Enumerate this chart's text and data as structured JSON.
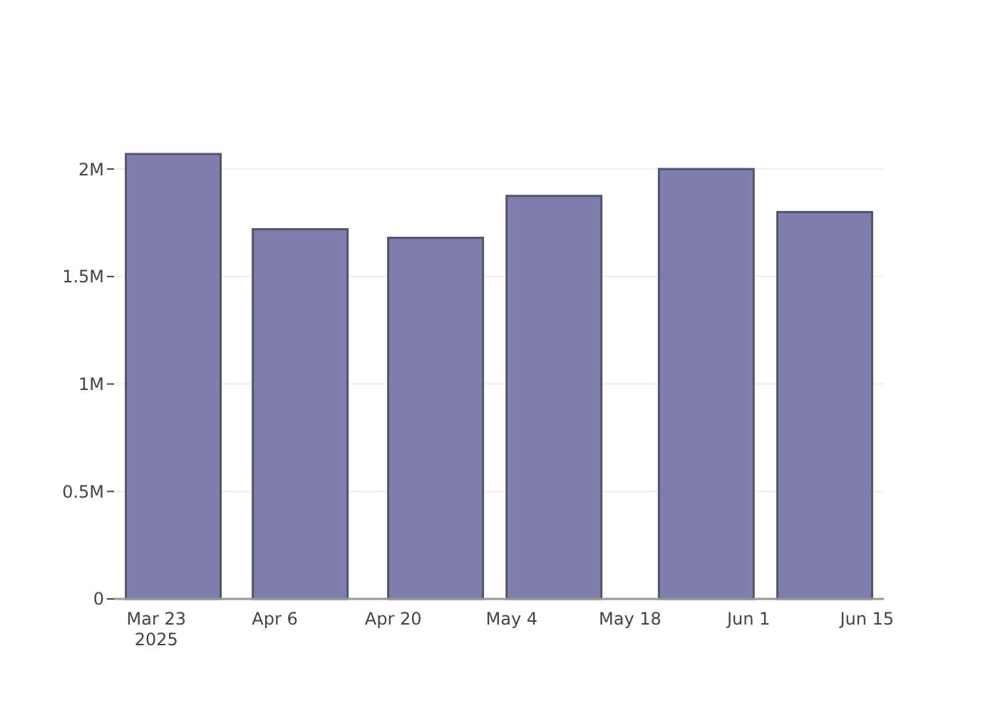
{
  "chart_data": {
    "type": "bar",
    "x": [
      "2025-03-25",
      "2025-04-09",
      "2025-04-25",
      "2025-05-09",
      "2025-05-27",
      "2025-06-10"
    ],
    "values": [
      2070000,
      1720000,
      1680000,
      1875000,
      2000000,
      1800000
    ],
    "color": "#7f7fae",
    "xlim": [
      "2025-03-18",
      "2025-06-17"
    ],
    "xticks": [
      {
        "value": "2025-03-23",
        "label": "Mar 23\n2025"
      },
      {
        "value": "2025-04-06",
        "label": "Apr 6"
      },
      {
        "value": "2025-04-20",
        "label": "Apr 20"
      },
      {
        "value": "2025-05-04",
        "label": "May 4"
      },
      {
        "value": "2025-05-18",
        "label": "May 18"
      },
      {
        "value": "2025-06-01",
        "label": "Jun 1"
      },
      {
        "value": "2025-06-15",
        "label": "Jun 15"
      }
    ],
    "ylim": [
      0,
      2070000
    ],
    "yticks": [
      0,
      {
        "value": 500000,
        "label": "0.5M"
      },
      {
        "value": 1000000,
        "label": "1M"
      },
      {
        "value": 1500000,
        "label": "1.5M"
      },
      {
        "value": 2000000,
        "label": "2M"
      }
    ],
    "grid": "y"
  }
}
